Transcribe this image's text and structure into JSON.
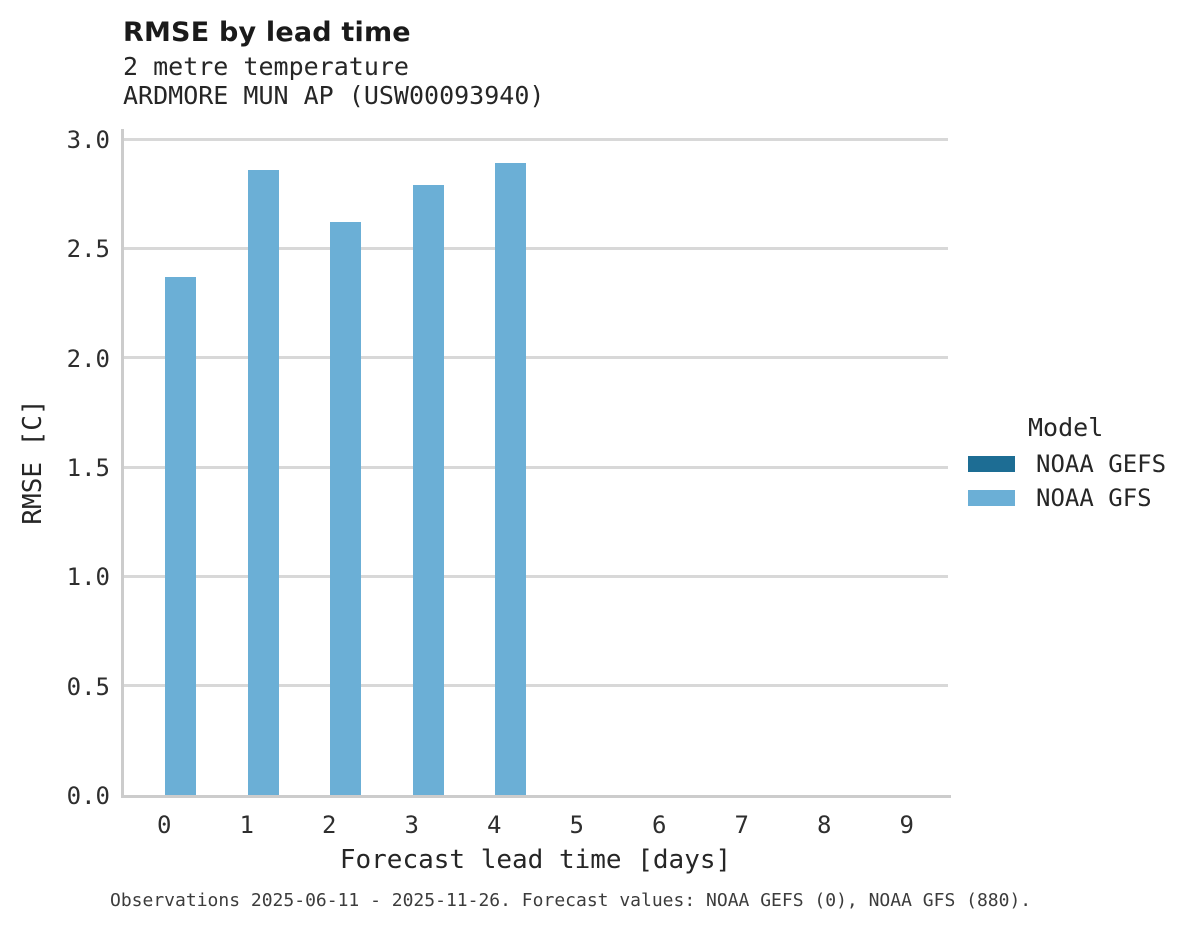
{
  "chart_data": {
    "type": "bar",
    "title": "RMSE by lead time",
    "subtitle": [
      "2 metre temperature",
      "ARDMORE MUN AP (USW00093940)"
    ],
    "xlabel": "Forecast lead time [days]",
    "ylabel": "RMSE [C]",
    "categories": [
      "0",
      "1",
      "2",
      "3",
      "4",
      "5",
      "6",
      "7",
      "8",
      "9"
    ],
    "series": [
      {
        "name": "NOAA GEFS",
        "color": "#1d6d94",
        "values": [
          null,
          null,
          null,
          null,
          null,
          null,
          null,
          null,
          null,
          null
        ]
      },
      {
        "name": "NOAA GFS",
        "color": "#6bafd6",
        "values": [
          2.37,
          2.86,
          2.62,
          2.79,
          2.89,
          null,
          null,
          null,
          null,
          null
        ]
      }
    ],
    "ylim": [
      0,
      3.0
    ],
    "yticks": [
      0.0,
      0.5,
      1.0,
      1.5,
      2.0,
      2.5,
      3.0
    ],
    "grid": "horizontal",
    "legend": {
      "title": "Model",
      "position": "right"
    },
    "caption": "Observations 2025-06-11 - 2025-11-26. Forecast values: NOAA GEFS (0), NOAA GFS (880).",
    "colors": {
      "gridline": "#d8d8d8",
      "spine": "#cccccc"
    }
  }
}
